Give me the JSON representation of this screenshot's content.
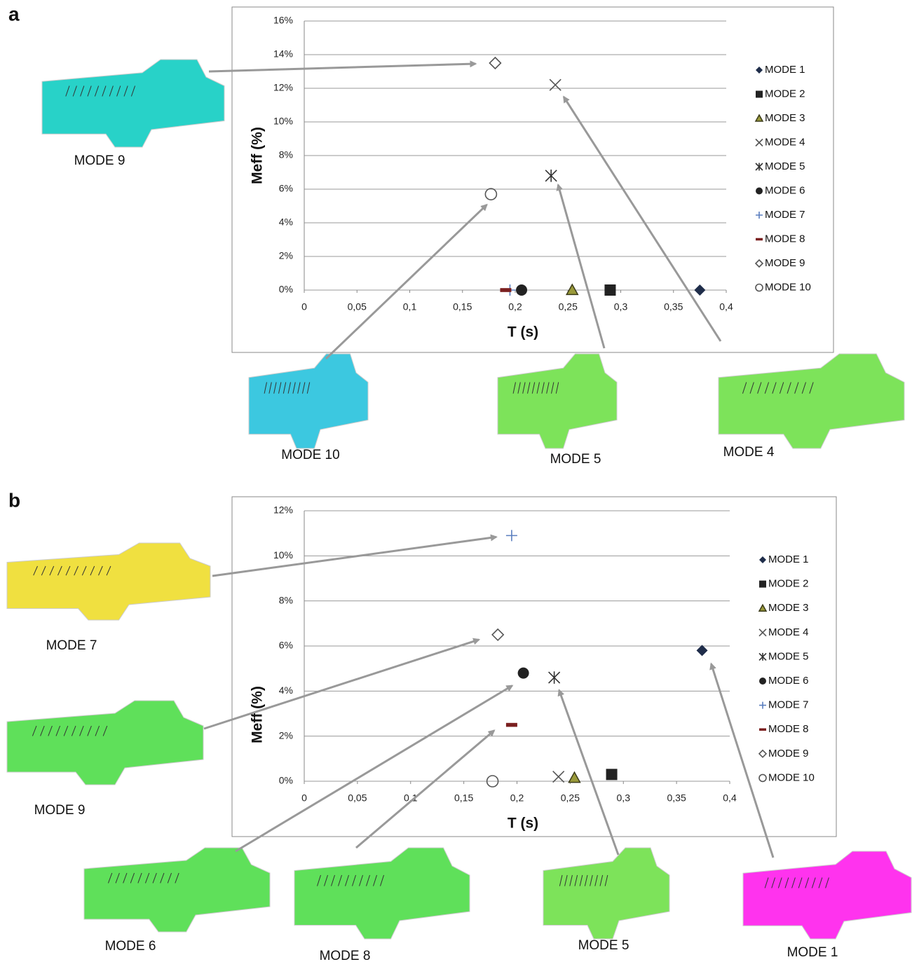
{
  "chart_data": [
    {
      "type": "scatter",
      "panel": "a",
      "x_label": "T (s)",
      "y_label": "Meff (%)",
      "xlim": [
        0,
        0.4
      ],
      "ylim": [
        0,
        16
      ],
      "grid": true,
      "xticks": [
        0,
        {
          "value": 0.05,
          "label": "0,05"
        },
        {
          "value": 0.1,
          "label": "0,1"
        },
        {
          "value": 0.15,
          "label": "0,15"
        },
        {
          "value": 0.2,
          "label": "0,2"
        },
        {
          "value": 0.25,
          "label": "0,25"
        },
        {
          "value": 0.3,
          "label": "0,3"
        },
        {
          "value": 0.35,
          "label": "0,35"
        },
        {
          "value": 0.4,
          "label": "0,4"
        }
      ],
      "yticks": [
        {
          "value": 0,
          "label": "0%"
        },
        {
          "value": 2,
          "label": "2%"
        },
        {
          "value": 4,
          "label": "4%"
        },
        {
          "value": 6,
          "label": "6%"
        },
        {
          "value": 8,
          "label": "8%"
        },
        {
          "value": 10,
          "label": "10%"
        },
        {
          "value": 12,
          "label": "12%"
        },
        {
          "value": 14,
          "label": "14%"
        },
        {
          "value": 16,
          "label": "16%"
        }
      ],
      "series": [
        {
          "name": "MODE 1",
          "color": "#1f2d4a",
          "marker": "diamond",
          "x": [
            0.375
          ],
          "values": [
            0
          ]
        },
        {
          "name": "MODE 2",
          "color": "#222222",
          "marker": "square",
          "x": [
            0.29
          ],
          "values": [
            0
          ]
        },
        {
          "name": "MODE 3",
          "color": "#3b3b1a",
          "marker": "triangle",
          "x": [
            0.254
          ],
          "values": [
            0
          ]
        },
        {
          "name": "MODE 4",
          "color": "#555555",
          "marker": "x",
          "x": [
            0.238
          ],
          "values": [
            12.2
          ]
        },
        {
          "name": "MODE 5",
          "color": "#333333",
          "marker": "asterisk",
          "x": [
            0.234
          ],
          "values": [
            6.8
          ]
        },
        {
          "name": "MODE 6",
          "color": "#222222",
          "marker": "circle",
          "x": [
            0.206
          ],
          "values": [
            0
          ]
        },
        {
          "name": "MODE 7",
          "color": "#5b7fbf",
          "marker": "plus",
          "x": [
            0.195
          ],
          "values": [
            0
          ]
        },
        {
          "name": "MODE 8",
          "color": "#7a1f1f",
          "marker": "dash",
          "x": [
            0.191
          ],
          "values": [
            0
          ]
        },
        {
          "name": "MODE 9",
          "color": "#555555",
          "marker": "diamond-open",
          "x": [
            0.181
          ],
          "values": [
            13.5
          ]
        },
        {
          "name": "MODE 10",
          "color": "#555555",
          "marker": "circle-open",
          "x": [
            0.177
          ],
          "values": [
            5.7
          ]
        }
      ],
      "thumbnail_labels": [
        "MODE 9",
        "MODE 10",
        "MODE 5",
        "MODE 4"
      ]
    },
    {
      "type": "scatter",
      "panel": "b",
      "x_label": "T (s)",
      "y_label": "Meff (%)",
      "xlim": [
        0,
        0.4
      ],
      "ylim": [
        0,
        12
      ],
      "grid": true,
      "xticks": [
        0,
        {
          "value": 0.05,
          "label": "0,05"
        },
        {
          "value": 0.1,
          "label": "0,1"
        },
        {
          "value": 0.15,
          "label": "0,15"
        },
        {
          "value": 0.2,
          "label": "0,2"
        },
        {
          "value": 0.25,
          "label": "0,25"
        },
        {
          "value": 0.3,
          "label": "0,3"
        },
        {
          "value": 0.35,
          "label": "0,35"
        },
        {
          "value": 0.4,
          "label": "0,4"
        }
      ],
      "yticks": [
        {
          "value": 0,
          "label": "0%"
        },
        {
          "value": 2,
          "label": "2%"
        },
        {
          "value": 4,
          "label": "4%"
        },
        {
          "value": 6,
          "label": "6%"
        },
        {
          "value": 8,
          "label": "8%"
        },
        {
          "value": 10,
          "label": "10%"
        },
        {
          "value": 12,
          "label": "12%"
        }
      ],
      "series": [
        {
          "name": "MODE 1",
          "color": "#1f2d4a",
          "marker": "diamond",
          "x": [
            0.374
          ],
          "values": [
            5.8
          ]
        },
        {
          "name": "MODE 2",
          "color": "#222222",
          "marker": "square",
          "x": [
            0.289
          ],
          "values": [
            0.3
          ]
        },
        {
          "name": "MODE 3",
          "color": "#3b3b1a",
          "marker": "triangle",
          "x": [
            0.254
          ],
          "values": [
            0.15
          ]
        },
        {
          "name": "MODE 4",
          "color": "#555555",
          "marker": "x",
          "x": [
            0.239
          ],
          "values": [
            0.2
          ]
        },
        {
          "name": "MODE 5",
          "color": "#333333",
          "marker": "asterisk",
          "x": [
            0.235
          ],
          "values": [
            4.6
          ]
        },
        {
          "name": "MODE 6",
          "color": "#222222",
          "marker": "circle",
          "x": [
            0.206
          ],
          "values": [
            4.8
          ]
        },
        {
          "name": "MODE 7",
          "color": "#5b7fbf",
          "marker": "plus",
          "x": [
            0.195
          ],
          "values": [
            10.9
          ]
        },
        {
          "name": "MODE 8",
          "color": "#7a1f1f",
          "marker": "dash",
          "x": [
            0.195
          ],
          "values": [
            2.5
          ]
        },
        {
          "name": "MODE 9",
          "color": "#555555",
          "marker": "diamond-open",
          "x": [
            0.182
          ],
          "values": [
            6.5
          ]
        },
        {
          "name": "MODE 10",
          "color": "#555555",
          "marker": "circle-open",
          "x": [
            0.177
          ],
          "values": [
            0
          ]
        }
      ],
      "thumbnail_labels": [
        "MODE 7",
        "MODE 9",
        "MODE 6",
        "MODE 8",
        "MODE 5",
        "MODE 1"
      ]
    }
  ]
}
